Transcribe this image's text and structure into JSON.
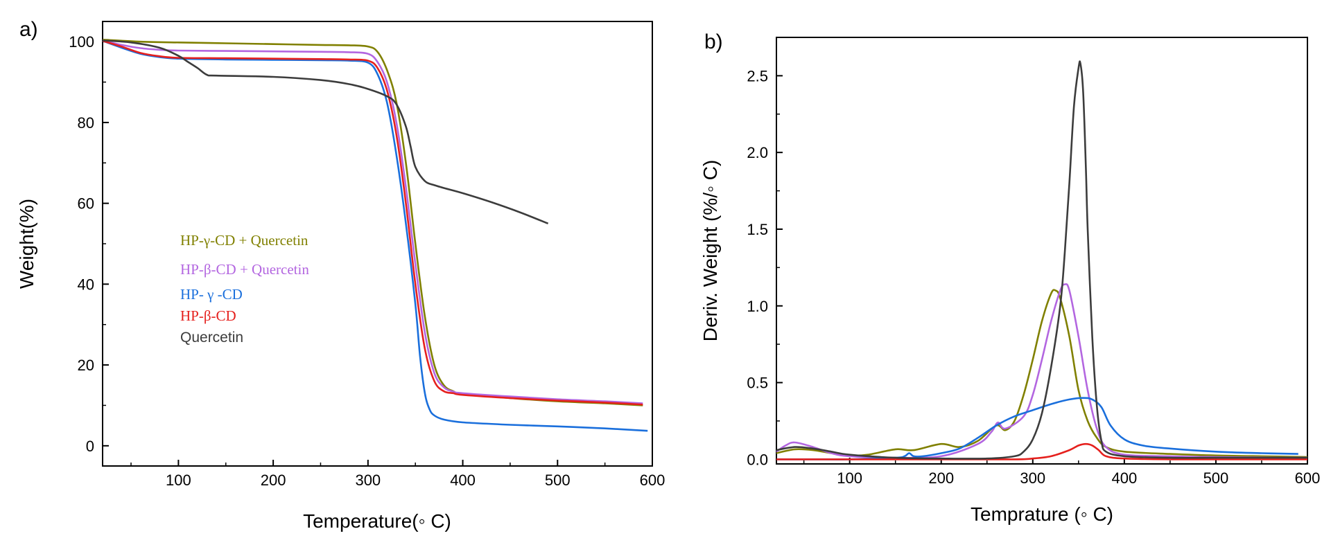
{
  "chart_data": [
    {
      "panel_label": "a)",
      "type": "line",
      "xlabel": "Temperature(◦ C)",
      "ylabel": "Weight(%)",
      "xlim": [
        20,
        600
      ],
      "ylim": [
        -5,
        105
      ],
      "xticks": [
        100,
        200,
        300,
        400,
        500,
        600
      ],
      "yticks": [
        0,
        20,
        40,
        60,
        80,
        100
      ],
      "grid": false,
      "legend_position": "center-left",
      "series": [
        {
          "name": "HP-γ-CD + Quercetin",
          "color": "#808000",
          "x": [
            20,
            60,
            100,
            150,
            200,
            250,
            280,
            300,
            310,
            320,
            330,
            340,
            350,
            360,
            370,
            380,
            390,
            400,
            450,
            500,
            550,
            590
          ],
          "y": [
            100.5,
            100,
            99.8,
            99.6,
            99.4,
            99.2,
            99.1,
            98.8,
            97.5,
            93,
            85,
            70,
            50,
            32,
            20,
            15,
            13.5,
            12.8,
            11.8,
            11,
            10.5,
            10
          ]
        },
        {
          "name": "HP-β-CD + Quercetin",
          "color": "#b366e0",
          "x": [
            20,
            40,
            60,
            80,
            100,
            150,
            200,
            250,
            280,
            300,
            310,
            320,
            330,
            340,
            350,
            360,
            370,
            380,
            390,
            400,
            450,
            500,
            550,
            590
          ],
          "y": [
            100.3,
            99.2,
            98.4,
            98,
            97.8,
            97.7,
            97.6,
            97.5,
            97.4,
            97,
            95,
            90,
            80,
            64,
            45,
            28,
            18,
            14.5,
            13.4,
            13,
            12.2,
            11.5,
            11,
            10.5
          ]
        },
        {
          "name": "HP- γ -CD",
          "color": "#1a6fdc",
          "x": [
            20,
            40,
            60,
            80,
            100,
            150,
            200,
            250,
            280,
            300,
            310,
            320,
            330,
            340,
            350,
            355,
            360,
            365,
            370,
            380,
            400,
            450,
            500,
            550,
            595
          ],
          "y": [
            100.2,
            98.5,
            97,
            96.2,
            95.8,
            95.6,
            95.5,
            95.4,
            95.3,
            94.8,
            92,
            85,
            72,
            55,
            35,
            22,
            13,
            9,
            7.5,
            6.5,
            5.8,
            5.2,
            4.8,
            4.3,
            3.7
          ]
        },
        {
          "name": "HP-β-CD",
          "color": "#e5201d",
          "x": [
            20,
            40,
            60,
            80,
            100,
            150,
            200,
            250,
            280,
            300,
            310,
            320,
            330,
            340,
            350,
            360,
            370,
            380,
            390,
            400,
            450,
            500,
            550,
            590
          ],
          "y": [
            100.2,
            98.8,
            97.2,
            96.4,
            96,
            95.9,
            95.8,
            95.7,
            95.6,
            95.3,
            93.5,
            88,
            77,
            60,
            40,
            24,
            16,
            13.5,
            13,
            12.6,
            11.8,
            11.2,
            10.7,
            10.2
          ]
        },
        {
          "name": "Quercetin",
          "color": "#3c3c3c",
          "x": [
            20,
            50,
            80,
            100,
            110,
            120,
            130,
            140,
            200,
            250,
            280,
            300,
            320,
            330,
            340,
            345,
            350,
            360,
            370,
            380,
            400,
            430,
            460,
            490
          ],
          "y": [
            100.3,
            99.8,
            98.5,
            96.5,
            95,
            93.5,
            91.8,
            91.6,
            91.3,
            90.5,
            89.5,
            88.3,
            86.5,
            84.5,
            79,
            74,
            69,
            65.5,
            64.5,
            63.8,
            62.5,
            60.3,
            57.8,
            55
          ]
        }
      ]
    },
    {
      "panel_label": "b)",
      "type": "line",
      "xlabel": "Temprature (◦ C)",
      "ylabel": "Deriv. Weight (%/◦ C)",
      "xlim": [
        20,
        600
      ],
      "ylim": [
        -0.03,
        2.75
      ],
      "xticks": [
        100,
        200,
        300,
        400,
        500,
        600
      ],
      "yticks": [
        0.0,
        0.5,
        1.0,
        1.5,
        2.0,
        2.5
      ],
      "ytick_labels": [
        "0.0",
        "0.5",
        "1.0",
        "1.5",
        "2.0",
        "2.5"
      ],
      "grid": false,
      "series": [
        {
          "name": "HP-γ-CD + Quercetin",
          "color": "#808000",
          "x": [
            20,
            40,
            60,
            80,
            100,
            120,
            150,
            170,
            200,
            220,
            240,
            260,
            270,
            280,
            290,
            300,
            310,
            320,
            325,
            330,
            340,
            350,
            360,
            370,
            380,
            400,
            450,
            500,
            550,
            600
          ],
          "y": [
            0.04,
            0.065,
            0.06,
            0.04,
            0.025,
            0.03,
            0.065,
            0.06,
            0.1,
            0.08,
            0.12,
            0.22,
            0.19,
            0.25,
            0.42,
            0.65,
            0.9,
            1.08,
            1.1,
            1.05,
            0.8,
            0.45,
            0.25,
            0.14,
            0.08,
            0.05,
            0.035,
            0.025,
            0.02,
            0.015
          ]
        },
        {
          "name": "HP-β-CD + Quercetin",
          "color": "#b366e0",
          "x": [
            20,
            30,
            40,
            60,
            80,
            100,
            150,
            200,
            240,
            255,
            262,
            270,
            290,
            300,
            310,
            320,
            330,
            335,
            340,
            350,
            360,
            370,
            380,
            400,
            450,
            500,
            550,
            600
          ],
          "y": [
            0.05,
            0.09,
            0.11,
            0.08,
            0.04,
            0.02,
            0.01,
            0.02,
            0.1,
            0.18,
            0.24,
            0.2,
            0.28,
            0.42,
            0.65,
            0.9,
            1.1,
            1.14,
            1.1,
            0.8,
            0.45,
            0.2,
            0.08,
            0.03,
            0.02,
            0.015,
            0.012,
            0.01
          ]
        },
        {
          "name": "HP- γ -CD",
          "color": "#1a6fdc",
          "x": [
            20,
            60,
            100,
            150,
            160,
            165,
            170,
            180,
            200,
            220,
            240,
            260,
            280,
            300,
            320,
            340,
            355,
            365,
            375,
            385,
            400,
            420,
            450,
            500,
            550,
            590
          ],
          "y": [
            0,
            0,
            0,
            0.01,
            0.02,
            0.04,
            0.02,
            0.02,
            0.04,
            0.07,
            0.14,
            0.22,
            0.28,
            0.32,
            0.36,
            0.39,
            0.4,
            0.39,
            0.34,
            0.22,
            0.13,
            0.09,
            0.07,
            0.05,
            0.04,
            0.035
          ]
        },
        {
          "name": "HP-β-CD",
          "color": "#e5201d",
          "x": [
            20,
            100,
            200,
            280,
            300,
            320,
            340,
            350,
            358,
            365,
            372,
            380,
            400,
            450,
            500,
            550,
            600
          ],
          "y": [
            0,
            0,
            0,
            0,
            0.005,
            0.02,
            0.06,
            0.09,
            0.1,
            0.09,
            0.06,
            0.02,
            0.005,
            0,
            0,
            0,
            0
          ]
        },
        {
          "name": "Quercetin",
          "color": "#3c3c3c",
          "x": [
            20,
            40,
            60,
            80,
            100,
            150,
            200,
            250,
            280,
            290,
            300,
            310,
            320,
            330,
            335,
            340,
            345,
            350,
            352,
            355,
            358,
            360,
            365,
            370,
            375,
            380,
            400,
            450,
            500,
            550,
            600
          ],
          "y": [
            0.06,
            0.08,
            0.07,
            0.05,
            0.03,
            0.01,
            0.005,
            0.005,
            0.02,
            0.05,
            0.13,
            0.3,
            0.6,
            1.0,
            1.35,
            1.8,
            2.3,
            2.55,
            2.58,
            2.4,
            1.9,
            1.5,
            0.8,
            0.35,
            0.12,
            0.05,
            0.02,
            0.01,
            0.01,
            0.01,
            0.01
          ]
        }
      ]
    }
  ]
}
